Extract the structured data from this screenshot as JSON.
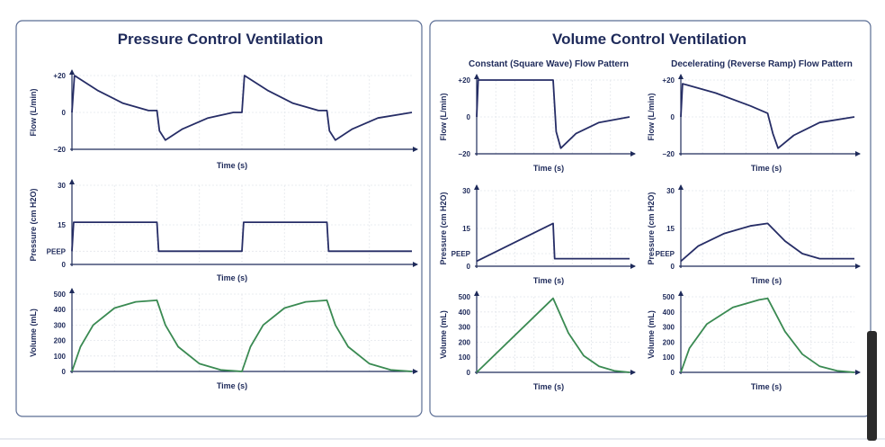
{
  "colors": {
    "pressure_flow": "#262d66",
    "volume": "#3a8a52",
    "panel_border": "#5b6d94",
    "text": "#1e2a5a"
  },
  "left_panel": {
    "title": "Pressure Control Ventilation"
  },
  "right_panel": {
    "title": "Volume Control Ventilation",
    "col1_title": "Constant (Square Wave) Flow Pattern",
    "col2_title": "Decelerating (Reverse Ramp) Flow Pattern"
  },
  "chart_data": [
    {
      "id": "pcv-flow",
      "type": "line",
      "panel": "Pressure Control Ventilation",
      "xlabel": "Time (s)",
      "ylabel": "Flow (L/min)",
      "ylim": [
        -20,
        20
      ],
      "yticks": [
        20,
        0,
        -20
      ],
      "ytick_labels": [
        "+20",
        "0",
        "−20"
      ],
      "x": [
        0,
        0.03,
        0.3,
        0.6,
        0.9,
        1,
        1.03,
        1.1,
        1.3,
        1.6,
        1.9,
        2,
        2.03,
        2.3,
        2.6,
        2.9,
        3,
        3.03,
        3.1,
        3.3,
        3.6,
        4
      ],
      "y": [
        0,
        20,
        12,
        5,
        1,
        1,
        -10,
        -15,
        -9,
        -3,
        0,
        0,
        20,
        12,
        5,
        1,
        1,
        -10,
        -15,
        -9,
        -3,
        0
      ]
    },
    {
      "id": "pcv-pressure",
      "type": "line",
      "panel": "Pressure Control Ventilation",
      "xlabel": "Time (s)",
      "ylabel": "Pressure (cm H2O)",
      "ylim": [
        0,
        30
      ],
      "yticks": [
        30,
        15,
        5,
        0
      ],
      "ytick_labels": [
        "30",
        "15",
        "PEEP",
        "0"
      ],
      "x": [
        0,
        0.02,
        1,
        1.02,
        2,
        2.02,
        3,
        3.02,
        4
      ],
      "y": [
        5,
        16,
        16,
        5,
        5,
        16,
        16,
        5,
        5
      ]
    },
    {
      "id": "pcv-volume",
      "type": "line",
      "panel": "Pressure Control Ventilation",
      "xlabel": "Time (s)",
      "ylabel": "Volume (mL)",
      "ylim": [
        0,
        500
      ],
      "yticks": [
        500,
        400,
        300,
        200,
        100,
        0
      ],
      "x": [
        0,
        0.1,
        0.25,
        0.5,
        0.75,
        1,
        1.1,
        1.25,
        1.5,
        1.75,
        2,
        2.1,
        2.25,
        2.5,
        2.75,
        3,
        3.1,
        3.25,
        3.5,
        3.75,
        4
      ],
      "y": [
        0,
        160,
        300,
        410,
        450,
        460,
        300,
        160,
        50,
        10,
        0,
        160,
        300,
        410,
        450,
        460,
        300,
        160,
        50,
        10,
        0
      ]
    },
    {
      "id": "vcv-square-flow",
      "type": "line",
      "panel": "Constant (Square Wave) Flow Pattern",
      "xlabel": "Time (s)",
      "ylabel": "Flow (L/min)",
      "ylim": [
        -20,
        20
      ],
      "yticks": [
        20,
        0,
        -20
      ],
      "ytick_labels": [
        "+20",
        "0",
        "−20"
      ],
      "x": [
        0,
        0.01,
        0.5,
        0.52,
        0.55,
        0.65,
        0.8,
        1
      ],
      "y": [
        0,
        20,
        20,
        -8,
        -17,
        -9,
        -3,
        0
      ]
    },
    {
      "id": "vcv-square-pressure",
      "type": "line",
      "panel": "Constant (Square Wave) Flow Pattern",
      "xlabel": "Time (s)",
      "ylabel": "Pressure (cm H2O)",
      "ylim": [
        0,
        30
      ],
      "yticks": [
        30,
        15,
        5,
        0
      ],
      "ytick_labels": [
        "30",
        "15",
        "PEEP",
        "0"
      ],
      "x": [
        0,
        0.5,
        0.51,
        1
      ],
      "y": [
        2,
        17,
        3,
        3
      ]
    },
    {
      "id": "vcv-square-volume",
      "type": "line",
      "panel": "Constant (Square Wave) Flow Pattern",
      "xlabel": "Time (s)",
      "ylabel": "Volume (mL)",
      "ylim": [
        0,
        500
      ],
      "yticks": [
        500,
        400,
        300,
        200,
        100,
        0
      ],
      "x": [
        0,
        0.5,
        0.6,
        0.7,
        0.8,
        0.9,
        1
      ],
      "y": [
        0,
        490,
        260,
        110,
        40,
        10,
        0
      ]
    },
    {
      "id": "vcv-decel-flow",
      "type": "line",
      "panel": "Decelerating (Reverse Ramp) Flow Pattern",
      "xlabel": "Time (s)",
      "ylabel": "Flow (L/min)",
      "ylim": [
        -20,
        20
      ],
      "yticks": [
        20,
        0,
        -20
      ],
      "ytick_labels": [
        "+20",
        "0",
        "−20"
      ],
      "x": [
        0,
        0.01,
        0.2,
        0.4,
        0.5,
        0.53,
        0.56,
        0.65,
        0.8,
        1
      ],
      "y": [
        0,
        18,
        13,
        6,
        2,
        -9,
        -17,
        -10,
        -3,
        0
      ]
    },
    {
      "id": "vcv-decel-pressure",
      "type": "line",
      "panel": "Decelerating (Reverse Ramp) Flow Pattern",
      "xlabel": "Time (s)",
      "ylabel": "Pressure (cm H2O)",
      "ylim": [
        0,
        30
      ],
      "yticks": [
        30,
        15,
        5,
        0
      ],
      "ytick_labels": [
        "30",
        "15",
        "PEEP",
        "0"
      ],
      "x": [
        0,
        0.1,
        0.25,
        0.4,
        0.5,
        0.6,
        0.7,
        0.8,
        1
      ],
      "y": [
        2,
        8,
        13,
        16,
        17,
        10,
        5,
        3,
        3
      ]
    },
    {
      "id": "vcv-decel-volume",
      "type": "line",
      "panel": "Decelerating (Reverse Ramp) Flow Pattern",
      "xlabel": "Time (s)",
      "ylabel": "Volume (mL)",
      "ylim": [
        0,
        500
      ],
      "yticks": [
        500,
        400,
        300,
        200,
        100,
        0
      ],
      "x": [
        0,
        0.05,
        0.15,
        0.3,
        0.45,
        0.5,
        0.6,
        0.7,
        0.8,
        0.9,
        1
      ],
      "y": [
        0,
        160,
        320,
        430,
        480,
        490,
        270,
        120,
        40,
        10,
        0
      ]
    }
  ]
}
